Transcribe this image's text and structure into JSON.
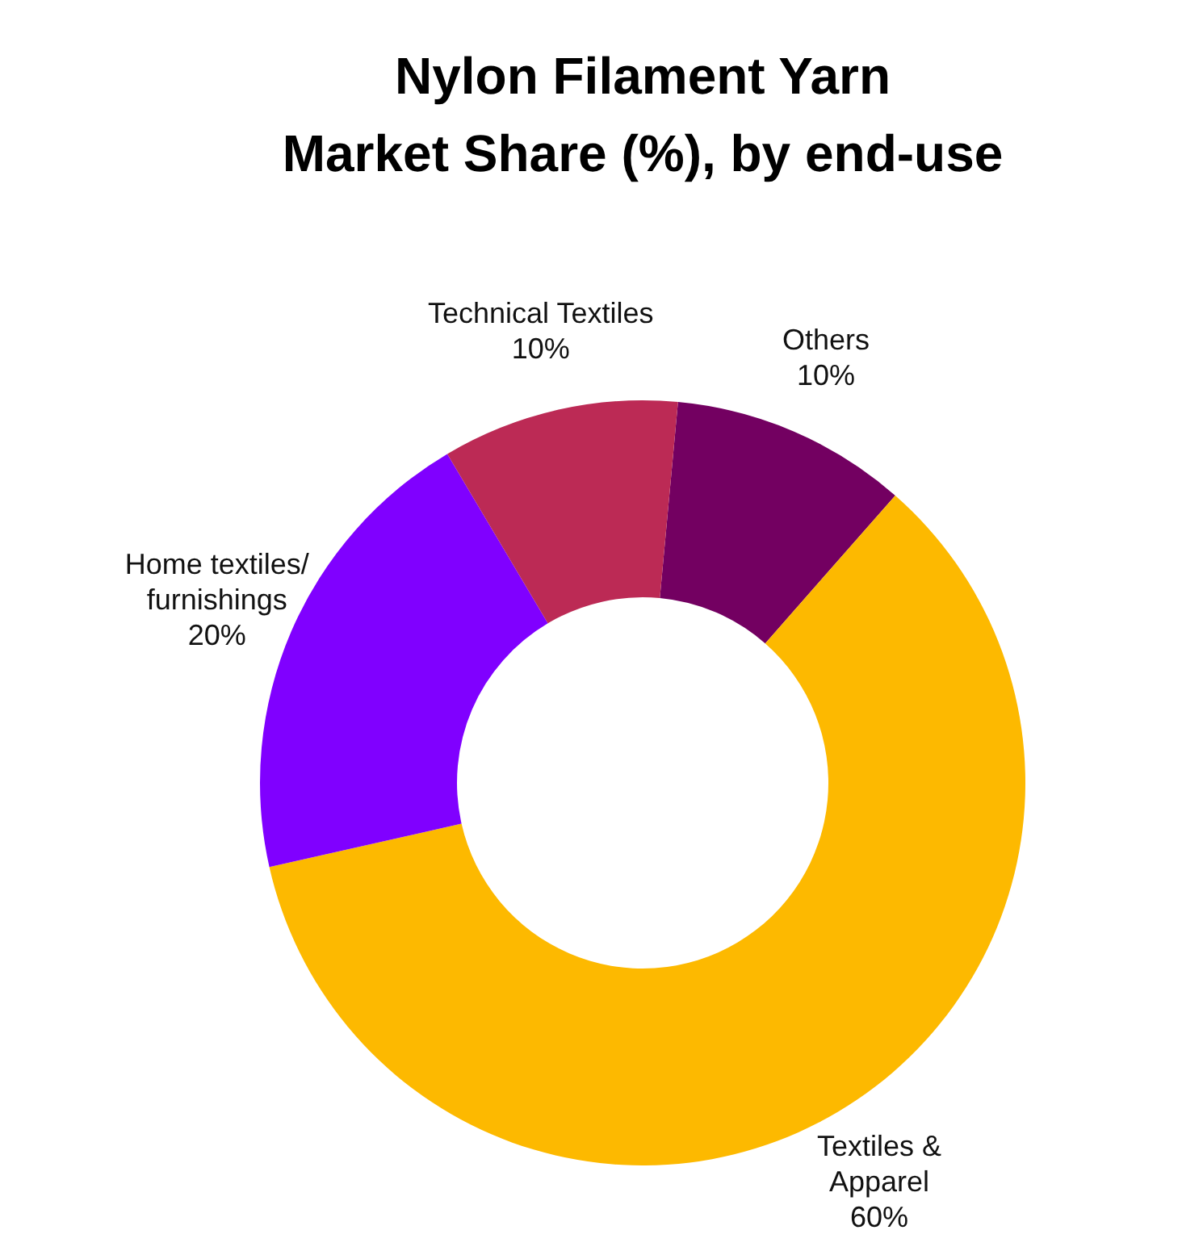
{
  "chart_data": {
    "type": "donut",
    "title": "Nylon Filament Yarn\nMarket Share (%), by end-use",
    "categories": [
      "Others",
      "Textiles &\nApparel",
      "Home textiles/\nfurnishings",
      "Technical Textiles"
    ],
    "values": [
      10,
      60,
      20,
      10
    ],
    "colors": [
      "#730061",
      "#fdb900",
      "#8000ff",
      "#bc2a55"
    ],
    "value_labels": [
      "10%",
      "60%",
      "20%",
      "10%"
    ]
  }
}
